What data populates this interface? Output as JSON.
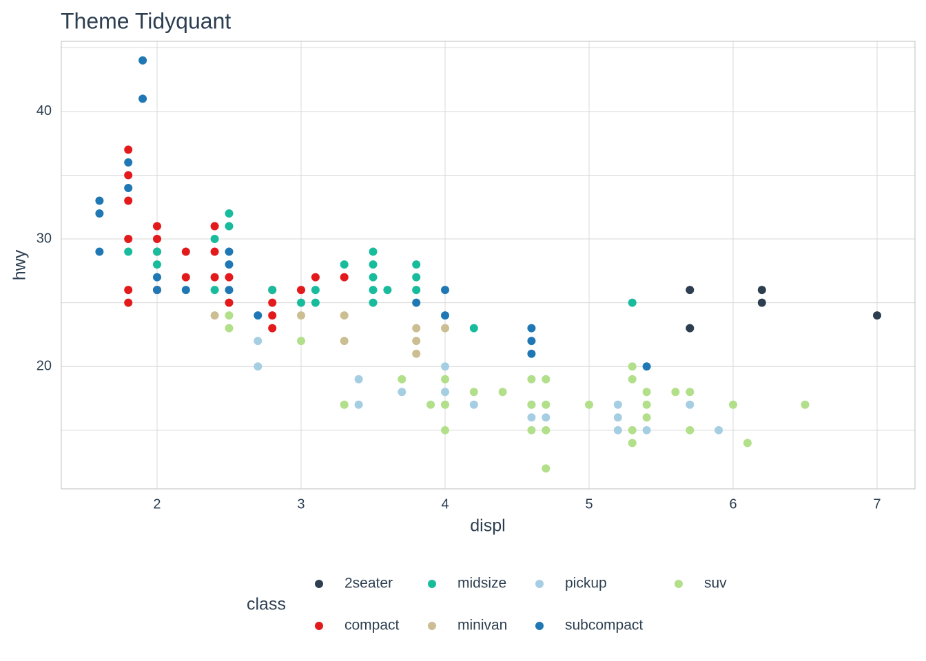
{
  "chart_data": {
    "type": "scatter",
    "title": "Theme Tidyquant",
    "x_label": "displ",
    "y_label": "hwy",
    "xlim": [
      1.335,
      7.263
    ],
    "ylim": [
      10.4,
      45.5
    ],
    "xticks": [
      2,
      3,
      4,
      5,
      6,
      7
    ],
    "yticks": [
      20,
      30,
      40
    ],
    "y_minor_ticks": [
      15,
      25,
      35,
      45
    ],
    "grid": true,
    "legend_title": "class",
    "legend_position": "bottom",
    "series": [
      {
        "name": "2seater",
        "color": "#2c3e50",
        "x": [
          5.7,
          5.7,
          6.2,
          6.2,
          7.0
        ],
        "y": [
          26,
          23,
          26,
          25,
          24
        ]
      },
      {
        "name": "compact",
        "color": "#e31a1c",
        "x": [
          1.8,
          1.8,
          1.8,
          1.8,
          1.8,
          1.8,
          2.0,
          2.0,
          2.0,
          2.0,
          2.2,
          2.2,
          2.4,
          2.4,
          2.4,
          2.5,
          2.5,
          2.8,
          2.8,
          2.8,
          2.8,
          3.0,
          3.1,
          3.3
        ],
        "y": [
          37,
          35,
          33,
          30,
          26,
          25,
          31,
          30,
          29,
          26,
          29,
          27,
          31,
          29,
          27,
          27,
          25,
          26,
          25,
          24,
          23,
          26,
          27,
          27
        ]
      },
      {
        "name": "midsize",
        "color": "#18bc9c",
        "x": [
          1.8,
          2.0,
          2.0,
          2.4,
          2.4,
          2.5,
          2.5,
          2.8,
          3.0,
          3.1,
          3.1,
          3.3,
          3.5,
          3.5,
          3.5,
          3.5,
          3.5,
          3.6,
          3.8,
          3.8,
          3.8,
          4.2,
          5.3
        ],
        "y": [
          29,
          29,
          28,
          30,
          26,
          32,
          31,
          26,
          25,
          26,
          25,
          28,
          29,
          28,
          27,
          26,
          25,
          26,
          28,
          27,
          26,
          23,
          25
        ]
      },
      {
        "name": "minivan",
        "color": "#ccbe93",
        "x": [
          2.4,
          3.0,
          3.3,
          3.3,
          3.8,
          3.8,
          3.8,
          4.0
        ],
        "y": [
          24,
          24,
          24,
          22,
          23,
          22,
          21,
          23
        ]
      },
      {
        "name": "pickup",
        "color": "#a6cee3",
        "x": [
          2.7,
          2.7,
          3.4,
          3.4,
          3.7,
          4.0,
          4.0,
          4.2,
          4.6,
          4.6,
          4.7,
          5.2,
          5.2,
          5.2,
          5.4,
          5.7,
          5.9
        ],
        "y": [
          22,
          20,
          19,
          17,
          18,
          20,
          18,
          17,
          17,
          16,
          16,
          17,
          16,
          15,
          15,
          17,
          15
        ]
      },
      {
        "name": "subcompact",
        "color": "#1f78b4",
        "x": [
          1.6,
          1.6,
          1.6,
          1.8,
          1.8,
          1.9,
          1.9,
          2.0,
          2.0,
          2.2,
          2.5,
          2.5,
          2.5,
          2.7,
          3.8,
          4.0,
          4.0,
          4.6,
          4.6,
          4.6,
          5.4
        ],
        "y": [
          33,
          32,
          29,
          36,
          34,
          44,
          41,
          27,
          26,
          26,
          29,
          28,
          26,
          24,
          25,
          26,
          24,
          23,
          22,
          21,
          20
        ]
      },
      {
        "name": "suv",
        "color": "#b2df8a",
        "x": [
          2.5,
          2.5,
          3.0,
          3.3,
          3.7,
          3.9,
          4.0,
          4.0,
          4.0,
          4.2,
          4.4,
          4.6,
          4.6,
          4.6,
          4.7,
          4.7,
          4.7,
          4.7,
          5.0,
          5.3,
          5.3,
          5.3,
          5.3,
          5.4,
          5.4,
          5.4,
          5.6,
          5.7,
          5.7,
          6.0,
          6.1,
          6.5
        ],
        "y": [
          24,
          23,
          22,
          17,
          19,
          17,
          19,
          17,
          15,
          18,
          18,
          19,
          17,
          15,
          19,
          17,
          15,
          12,
          17,
          20,
          19,
          15,
          14,
          18,
          17,
          16,
          18,
          18,
          15,
          17,
          14,
          17
        ]
      }
    ]
  }
}
